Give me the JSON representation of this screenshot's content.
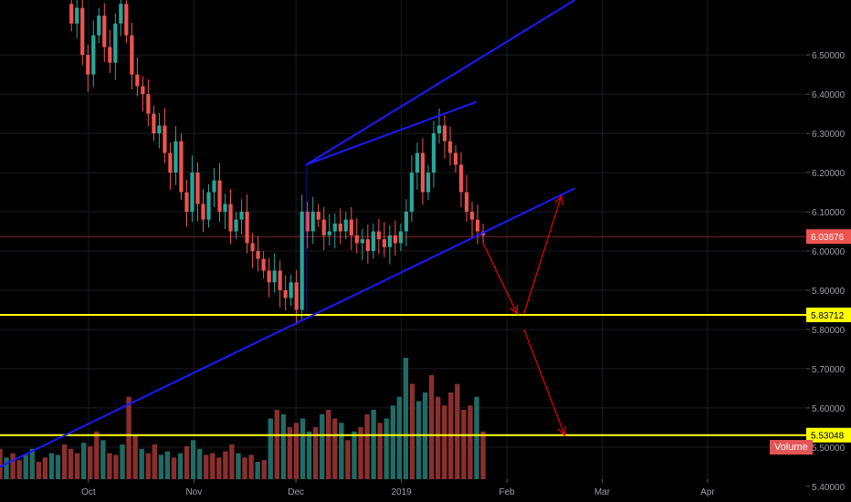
{
  "chart_data": {
    "type": "candlestick",
    "y_axis": {
      "range": [
        5.36,
        6.64
      ],
      "ticks": [
        "6.50000",
        "6.40000",
        "6.30000",
        "6.20000",
        "6.10000",
        "6.00000",
        "5.90000",
        "5.80000",
        "5.70000",
        "5.60000",
        "5.50000",
        "5.40000"
      ],
      "tick_values": [
        6.5,
        6.4,
        6.3,
        6.2,
        6.1,
        6.0,
        5.9,
        5.8,
        5.7,
        5.6,
        5.5,
        5.4
      ]
    },
    "x_axis": {
      "labels": [
        "Oct",
        "Nov",
        "Dec",
        "2019",
        "Feb",
        "Mar",
        "Apr"
      ],
      "label_dates": [
        "2018-10-01",
        "2018-11-01",
        "2018-12-01",
        "2019-01-01",
        "2019-02-01",
        "2019-03-01",
        "2019-04-01"
      ],
      "range": [
        "2018-09-05",
        "2019-04-30"
      ]
    },
    "price_range_dates": [
      "2018-09-26",
      "2019-01-25"
    ],
    "price_close": [
      6.58,
      6.62,
      6.5,
      6.45,
      6.55,
      6.6,
      6.52,
      6.48,
      6.58,
      6.63,
      6.55,
      6.45,
      6.42,
      6.4,
      6.35,
      6.3,
      6.32,
      6.25,
      6.2,
      6.28,
      6.15,
      6.1,
      6.2,
      6.12,
      6.08,
      6.15,
      6.18,
      6.1,
      6.12,
      6.05,
      6.08,
      6.1,
      6.02,
      6.0,
      5.98,
      5.95,
      5.92,
      5.95,
      5.9,
      5.88,
      5.92,
      5.85,
      6.1,
      6.05,
      6.1,
      6.08,
      6.04,
      6.05,
      6.07,
      6.05,
      6.08,
      6.04,
      6.02,
      6.03,
      6.0,
      6.05,
      6.03,
      6.01,
      6.04,
      6.02,
      6.05,
      6.1,
      6.2,
      6.25,
      6.15,
      6.2,
      6.3,
      6.32,
      6.28,
      6.25,
      6.22,
      6.15,
      6.1,
      6.08,
      6.05,
      6.04
    ],
    "volume": {
      "label": "Volume",
      "values": [
        35,
        25,
        30,
        22,
        28,
        35,
        20,
        25,
        30,
        28,
        40,
        35,
        30,
        42,
        38,
        55,
        45,
        30,
        28,
        40,
        95,
        50,
        35,
        30,
        40,
        28,
        32,
        25,
        30,
        38,
        45,
        35,
        28,
        30,
        25,
        32,
        40,
        30,
        25,
        28,
        20,
        22,
        70,
        80,
        75,
        60,
        65,
        70,
        55,
        60,
        75,
        80,
        70,
        65,
        45,
        55,
        60,
        75,
        80,
        65,
        70,
        85,
        95,
        140,
        110,
        90,
        100,
        120,
        95,
        85,
        100,
        110,
        80,
        85,
        95,
        55
      ],
      "colors": [
        "r",
        "g",
        "r",
        "r",
        "g",
        "g",
        "r",
        "r",
        "g",
        "g",
        "r",
        "r",
        "r",
        "g",
        "r",
        "r",
        "g",
        "r",
        "r",
        "g",
        "r",
        "r",
        "g",
        "r",
        "r",
        "g",
        "g",
        "r",
        "g",
        "r",
        "g",
        "g",
        "r",
        "r",
        "r",
        "r",
        "r",
        "g",
        "r",
        "r",
        "g",
        "r",
        "g",
        "r",
        "g",
        "r",
        "r",
        "g",
        "g",
        "r",
        "g",
        "r",
        "r",
        "g",
        "r",
        "g",
        "r",
        "r",
        "g",
        "r",
        "g",
        "g",
        "g",
        "g",
        "r",
        "g",
        "g",
        "r",
        "r",
        "r",
        "r",
        "r",
        "r",
        "r",
        "g",
        "r"
      ]
    },
    "trend_channel": {
      "upper_line": {
        "from": [
          "2018-12-04",
          6.22
        ],
        "to": [
          "2019-02-21",
          6.64
        ]
      },
      "middle_line": {
        "from": [
          "2018-12-04",
          6.22
        ],
        "to": [
          "2019-01-23",
          6.38
        ]
      },
      "lower_line": {
        "from": [
          "2018-09-05",
          5.45
        ],
        "to": [
          "2019-02-21",
          6.16
        ]
      }
    },
    "horizontal_levels": [
      {
        "value": 5.83712,
        "label": "5.83712",
        "color": "#ffff00"
      },
      {
        "value": 5.53048,
        "label": "5.53048",
        "color": "#ffff00"
      },
      {
        "value": 6.03676,
        "label": "6.03676",
        "color": "#ef5350"
      }
    ],
    "arrows": [
      {
        "from": [
          "2019-01-25",
          6.02
        ],
        "to": [
          "2019-02-04",
          5.84
        ]
      },
      {
        "from": [
          "2019-02-06",
          5.84
        ],
        "to": [
          "2019-02-17",
          6.14
        ]
      },
      {
        "from": [
          "2019-02-06",
          5.8
        ],
        "to": [
          "2019-02-18",
          5.53
        ]
      }
    ],
    "grid": true,
    "legend_position": "none",
    "colors": {
      "up": "#26a69a",
      "down": "#ef5350",
      "channel": "#1a1aff",
      "level": "#ffff00",
      "arrow": "#e00000",
      "price_tag": "#ef5350",
      "volume_up": "#1f6b65",
      "volume_down": "#8b2e2e"
    }
  }
}
